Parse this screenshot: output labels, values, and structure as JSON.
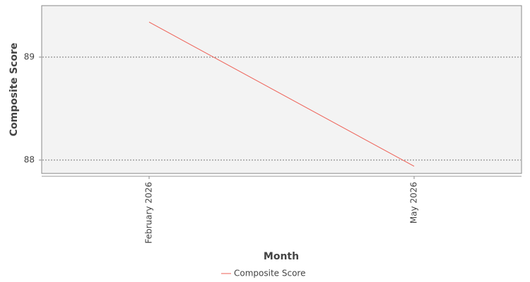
{
  "chart_data": {
    "type": "line",
    "x_label": "Month",
    "y_label": "Composite Score",
    "categories": [
      "February 2026",
      "May 2026"
    ],
    "series": [
      {
        "name": "Composite Score",
        "color": "#ee5f55",
        "values": [
          89.34,
          87.94
        ]
      }
    ],
    "ylim": [
      87.87,
      89.5
    ],
    "yticks": [
      88,
      89
    ],
    "grid": true,
    "legend": "bottom"
  }
}
